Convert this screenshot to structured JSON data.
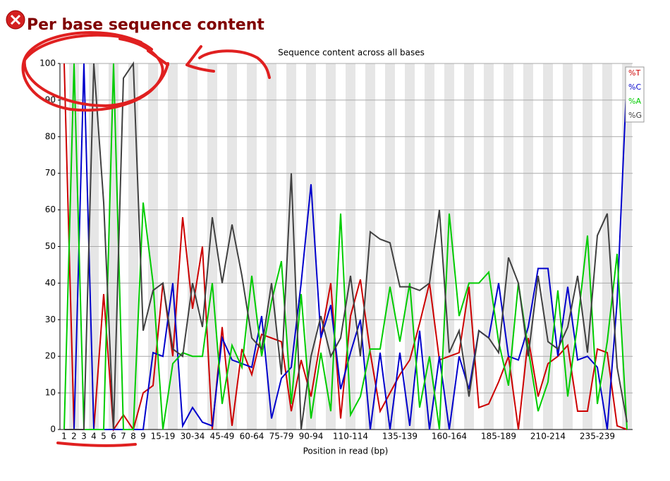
{
  "chart_data": {
    "type": "line",
    "page_title": "Per base sequence content",
    "title": "Sequence content across all bases",
    "x_label": "Position in read (bp)",
    "categories": [
      "1",
      "2",
      "3",
      "4",
      "5",
      "6",
      "7",
      "8",
      "9",
      null,
      "15-19",
      null,
      null,
      "30-34",
      null,
      null,
      "45-49",
      null,
      null,
      "60-64",
      null,
      null,
      "75-79",
      null,
      null,
      "90-94",
      null,
      null,
      null,
      "110-114",
      null,
      null,
      null,
      null,
      "135-139",
      null,
      null,
      null,
      null,
      "160-164",
      null,
      null,
      null,
      null,
      "185-189",
      null,
      null,
      null,
      null,
      "210-214",
      null,
      null,
      null,
      null,
      "235-239",
      null,
      null,
      null
    ],
    "ylim": [
      0,
      100
    ],
    "yticks": [
      0,
      10,
      20,
      30,
      40,
      50,
      60,
      70,
      80,
      90,
      100
    ],
    "grid": true,
    "legend": "top-right",
    "series": [
      {
        "name": "%T",
        "color": "#cc0000",
        "values": [
          100,
          0,
          0,
          0,
          37,
          0,
          4,
          0,
          10,
          12,
          40,
          20,
          58,
          33,
          50,
          0,
          28,
          1,
          22,
          15,
          26,
          25,
          24,
          5,
          19,
          9,
          25,
          40,
          3,
          31,
          41,
          21,
          5,
          10,
          15,
          19,
          29,
          40,
          19,
          20,
          21,
          39,
          6,
          7,
          13,
          20,
          0,
          25,
          9,
          18,
          20,
          23,
          5,
          5,
          22,
          21,
          1,
          0
        ]
      },
      {
        "name": "%C",
        "color": "#0000cc",
        "values": [
          0,
          0,
          100,
          0,
          0,
          0,
          0,
          0,
          0,
          21,
          20,
          40,
          1,
          6,
          2,
          1,
          25,
          19,
          18,
          17,
          31,
          3,
          14,
          17,
          40,
          67,
          25,
          34,
          11,
          21,
          30,
          0,
          21,
          0,
          21,
          1,
          27,
          0,
          20,
          0,
          20,
          11,
          27,
          25,
          40,
          20,
          19,
          28,
          44,
          44,
          20,
          39,
          19,
          20,
          17,
          0,
          35,
          97
        ]
      },
      {
        "name": "%A",
        "color": "#00cc00",
        "values": [
          0,
          100,
          0,
          0,
          0,
          100,
          0,
          0,
          62,
          40,
          0,
          18,
          21,
          20,
          20,
          40,
          7,
          23,
          17,
          42,
          20,
          35,
          46,
          7,
          37,
          3,
          21,
          5,
          59,
          4,
          9,
          22,
          22,
          39,
          24,
          40,
          6,
          20,
          0,
          59,
          31,
          40,
          40,
          43,
          24,
          12,
          40,
          22,
          5,
          13,
          38,
          9,
          29,
          53,
          7,
          24,
          48,
          0
        ]
      },
      {
        "name": "%G",
        "color": "#404040",
        "values": [
          0,
          0,
          0,
          100,
          62,
          0,
          96,
          100,
          27,
          38,
          40,
          22,
          20,
          40,
          28,
          58,
          40,
          56,
          42,
          25,
          22,
          40,
          15,
          70,
          0,
          20,
          31,
          20,
          25,
          42,
          20,
          54,
          52,
          51,
          39,
          39,
          38,
          40,
          60,
          21,
          27,
          9,
          27,
          25,
          21,
          47,
          40,
          20,
          42,
          24,
          22,
          28,
          42,
          21,
          53,
          59,
          17,
          2
        ]
      }
    ]
  }
}
